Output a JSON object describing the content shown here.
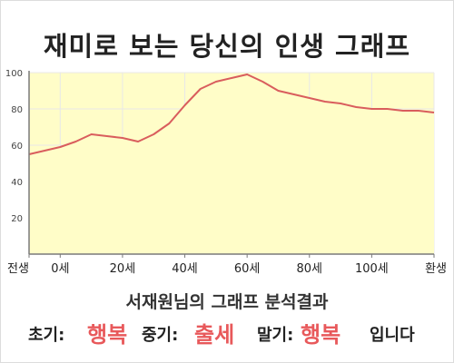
{
  "title": "재미로 보는 당신의 인생 그래프",
  "colors": {
    "fill": "#fffdc8",
    "line": "#d95d5d",
    "grid": "#e8e8e8",
    "axis": "#7a7a7a",
    "highlight": "#e8595b"
  },
  "chart_data": {
    "type": "area",
    "x_ticks": [
      {
        "x": -10,
        "label": "전생"
      },
      {
        "x": 0,
        "label": "0세"
      },
      {
        "x": 20,
        "label": "20세"
      },
      {
        "x": 40,
        "label": "40세"
      },
      {
        "x": 60,
        "label": "60세"
      },
      {
        "x": 80,
        "label": "80세"
      },
      {
        "x": 100,
        "label": "100세"
      },
      {
        "x": 120,
        "label": "환생"
      }
    ],
    "y_ticks": [
      20,
      40,
      60,
      80,
      100
    ],
    "xlim": [
      -10,
      120
    ],
    "ylim": [
      0,
      100
    ],
    "grid": true,
    "series": [
      {
        "x": [
          -10,
          0,
          5,
          10,
          15,
          20,
          25,
          30,
          35,
          40,
          45,
          50,
          55,
          60,
          65,
          70,
          75,
          80,
          85,
          90,
          95,
          100,
          105,
          110,
          115,
          120
        ],
        "y": [
          55,
          59,
          62,
          66,
          65,
          64,
          62,
          66,
          72,
          82,
          91,
          95,
          97,
          99,
          95,
          90,
          88,
          86,
          84,
          83,
          81,
          80,
          80,
          79,
          79,
          78
        ]
      }
    ]
  },
  "result": {
    "subtitle": "서재원님의 그래프 분석결과",
    "early_label": "초기:",
    "early_value": "행복",
    "middle_label": "중기:",
    "middle_value": "출세",
    "late_label": "말기:",
    "late_value": "행복",
    "ending": "입니다"
  }
}
